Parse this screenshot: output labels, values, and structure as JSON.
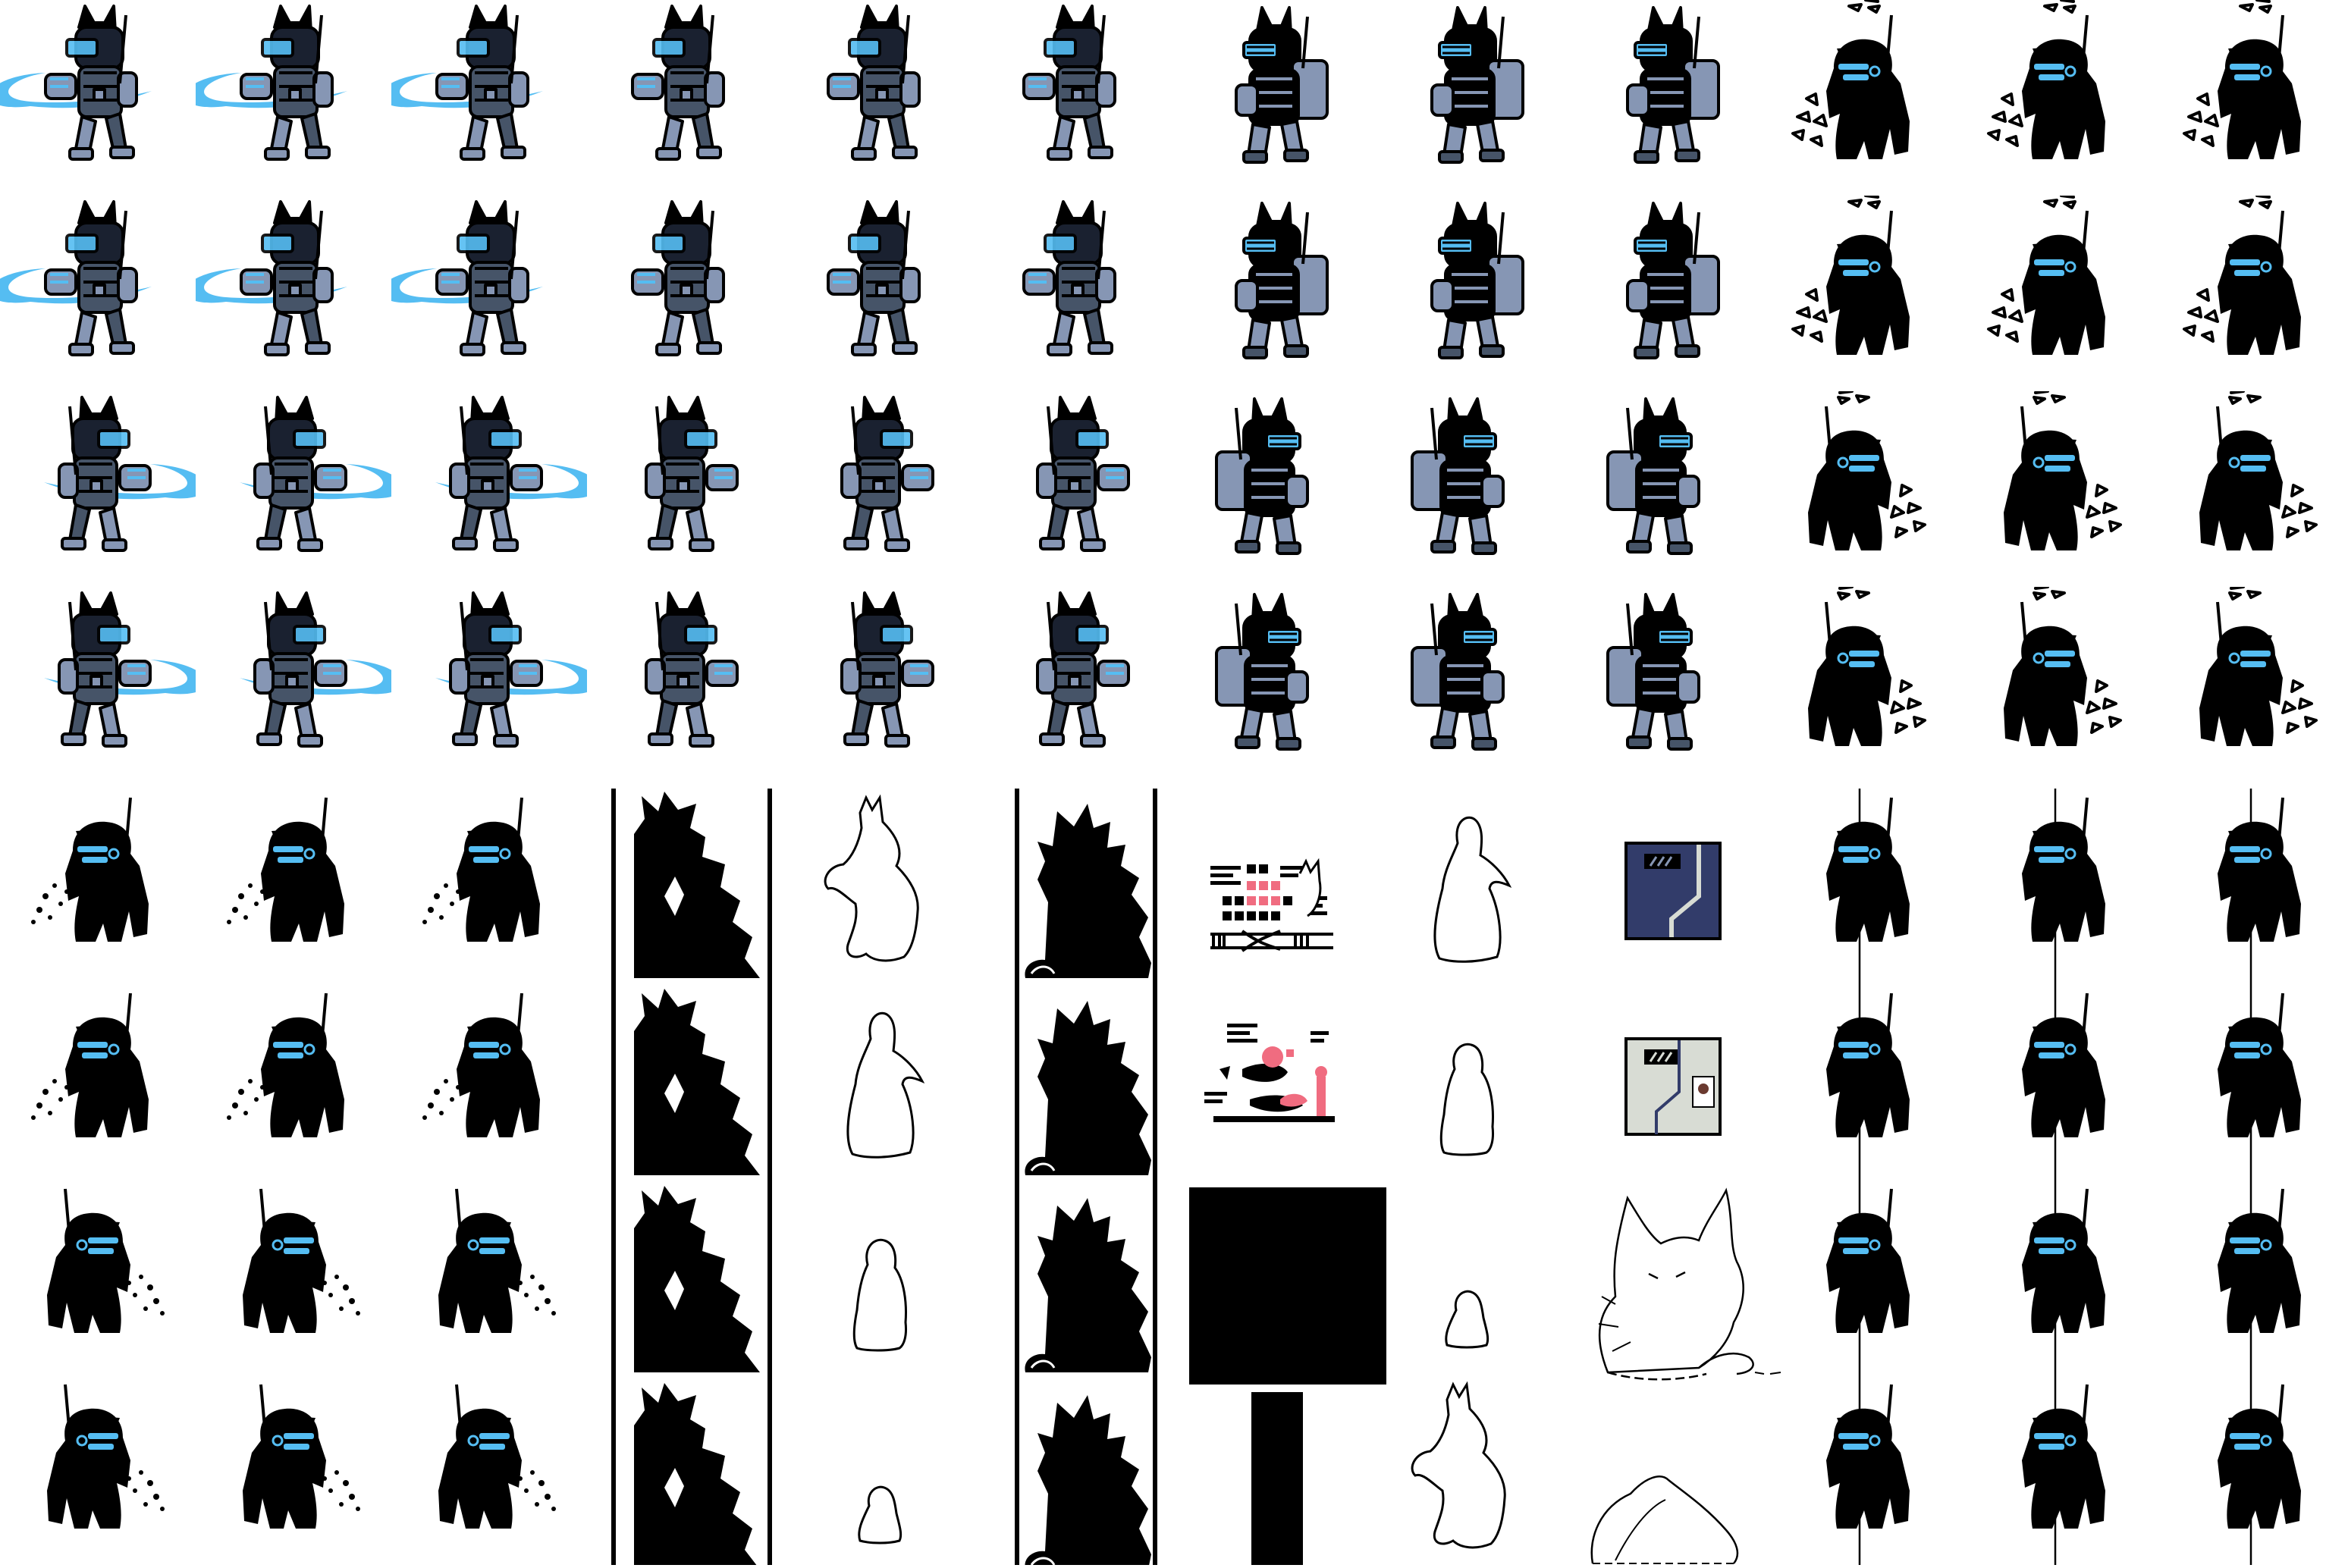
{
  "sheet": {
    "columns": 12,
    "rows": 8,
    "background": "#ffffff",
    "palette": {
      "ink": "#000000",
      "glow": "#55bdf2",
      "armor": "#8696b4",
      "armor_dark": "#465468",
      "pink": "#f06c80",
      "door_dark": "#323c6a",
      "door_light": "#d8dcd4",
      "outline_fill": "#ffffff"
    }
  },
  "rows": [
    [
      "robo-swing-left",
      "robo-swing-left",
      "robo-swing-left",
      "robo-stand-left",
      "robo-stand-left",
      "robo-stand-left",
      "robo-heavy-left",
      "robo-heavy-left",
      "robo-heavy-left",
      "shadow-debris-left",
      "shadow-debris-left",
      "shadow-debris-left"
    ],
    [
      "robo-swing-left",
      "robo-swing-left",
      "robo-swing-left",
      "robo-stand-left",
      "robo-stand-left",
      "robo-stand-left",
      "robo-heavy-left",
      "robo-heavy-left",
      "robo-heavy-left",
      "shadow-debris-left",
      "shadow-debris-left",
      "shadow-debris-left"
    ],
    [
      "robo-swing-right",
      "robo-swing-right",
      "robo-swing-right",
      "robo-stand-right",
      "robo-stand-right",
      "robo-stand-right",
      "robo-heavy-right",
      "robo-heavy-right",
      "robo-heavy-right",
      "shadow-debris-right",
      "shadow-debris-right",
      "shadow-debris-right"
    ],
    [
      "robo-swing-right",
      "robo-swing-right",
      "robo-swing-right",
      "robo-stand-right",
      "robo-stand-right",
      "robo-stand-right",
      "robo-heavy-right",
      "robo-heavy-right",
      "robo-heavy-right",
      "shadow-debris-right",
      "shadow-debris-right",
      "shadow-debris-right"
    ],
    [
      "shadow-dust-left",
      "shadow-dust-left",
      "shadow-dust-left",
      "",
      "blob-outline-tall",
      "",
      "panel-cats",
      "blob-outline-penguin",
      "door-dark",
      "shadow-hang",
      "shadow-hang",
      "shadow-hang"
    ],
    [
      "shadow-dust-left",
      "shadow-dust-left",
      "shadow-dust-left",
      "",
      "blob-outline-penguin",
      "",
      "panel-lab",
      "blob-outline-ghost",
      "door-light",
      "shadow-hang",
      "shadow-hang",
      "shadow-hang"
    ],
    [
      "shadow-dust-right",
      "shadow-dust-right",
      "shadow-dust-right",
      "",
      "blob-outline-ghost",
      "",
      "",
      "blob-outline-small",
      "",
      "shadow-hang",
      "shadow-hang",
      "shadow-hang"
    ],
    [
      "shadow-dust-right",
      "shadow-dust-right",
      "shadow-dust-right",
      "",
      "blob-outline-small",
      "",
      "",
      "blob-outline-tall",
      "",
      "shadow-hang",
      "shadow-hang",
      "shadow-hang"
    ]
  ],
  "strips": [
    {
      "name": "silhouette-strip-left",
      "column": 3
    },
    {
      "name": "silhouette-strip-right",
      "column": 5
    }
  ]
}
